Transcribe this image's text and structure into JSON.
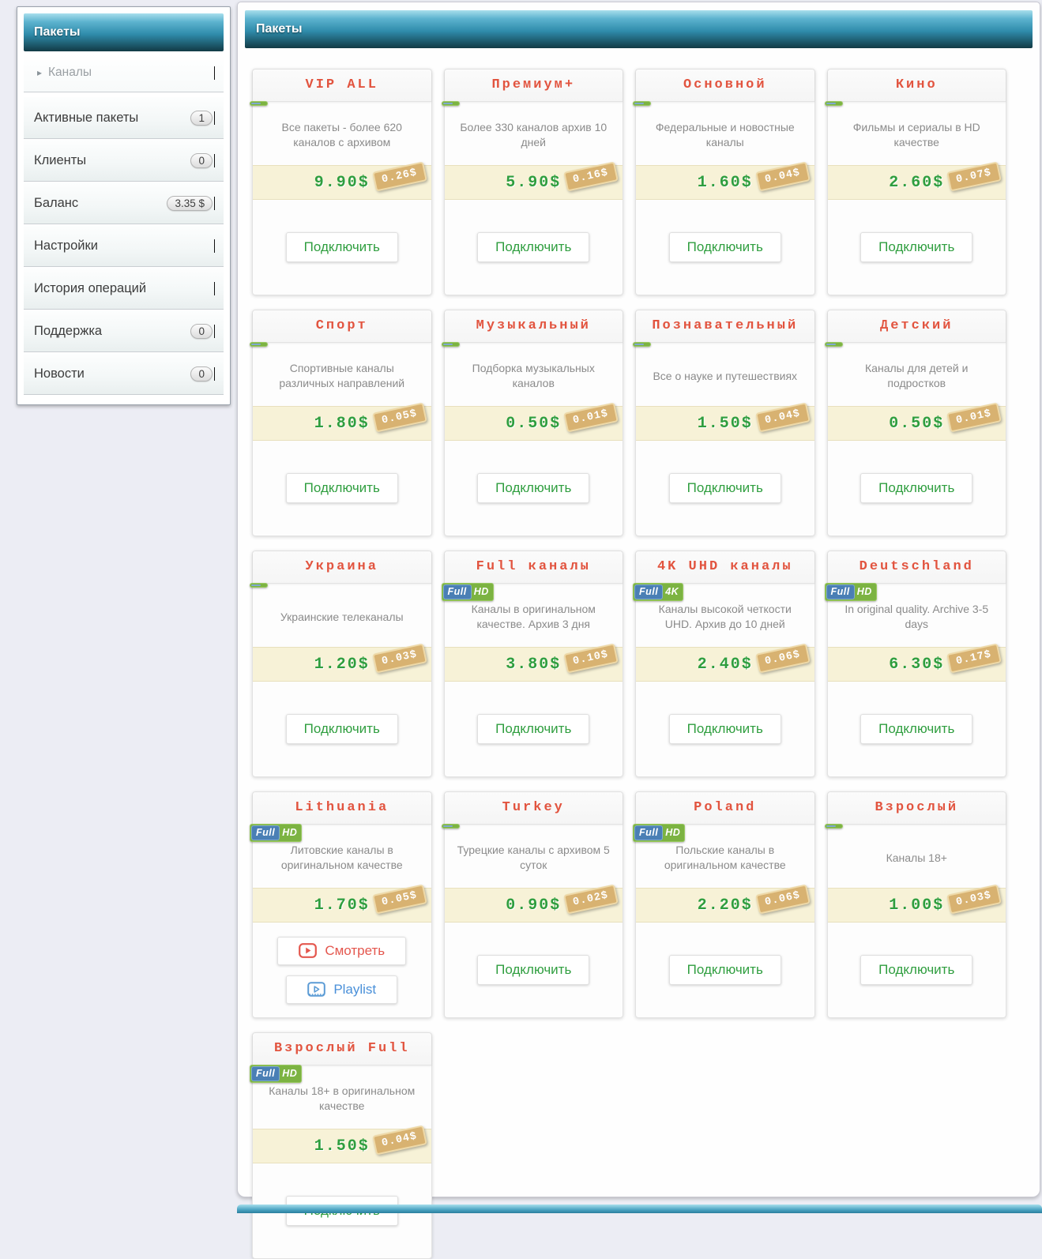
{
  "sidebar": {
    "header": "Пакеты",
    "items": [
      {
        "label": "Каналы",
        "sub": true,
        "badge": null,
        "caret_icon": "▸"
      },
      {
        "label": "Активные пакеты",
        "badge": "1"
      },
      {
        "label": "Клиенты",
        "badge": "0"
      },
      {
        "label": "Баланс",
        "badge": "3.35 $"
      },
      {
        "label": "Настройки",
        "badge": null
      },
      {
        "label": "История операций",
        "badge": null
      },
      {
        "label": "Поддержка",
        "badge": "0"
      },
      {
        "label": "Новости",
        "badge": "0",
        "text_cursor": true
      }
    ]
  },
  "main": {
    "header": "Пакеты"
  },
  "labels": {
    "connect": "Подключить",
    "watch": "Смотреть",
    "playlist": "Playlist",
    "badge_full": "Full"
  },
  "packages": [
    {
      "title": "VIP ALL",
      "badge": null,
      "description": "Все пакеты - более 620 каналов с архивом",
      "price": "9.90$",
      "per_day": "0.26$",
      "actions": [
        "connect"
      ]
    },
    {
      "title": "Премиум+",
      "badge": null,
      "description": "Более 330 каналов архив 10 дней",
      "price": "5.90$",
      "per_day": "0.16$",
      "actions": [
        "connect"
      ]
    },
    {
      "title": "Основной",
      "badge": null,
      "description": "Федеральные и новостные каналы",
      "price": "1.60$",
      "per_day": "0.04$",
      "actions": [
        "connect"
      ]
    },
    {
      "title": "Кино",
      "badge": null,
      "description": "Фильмы и сериалы в HD качестве",
      "price": "2.60$",
      "per_day": "0.07$",
      "actions": [
        "connect"
      ]
    },
    {
      "title": "Спорт",
      "badge": null,
      "description": "Спортивные каналы различных направлений",
      "price": "1.80$",
      "per_day": "0.05$",
      "actions": [
        "connect"
      ]
    },
    {
      "title": "Музыкальный",
      "badge": null,
      "description": "Подборка музыкальных каналов",
      "price": "0.50$",
      "per_day": "0.01$",
      "actions": [
        "connect"
      ]
    },
    {
      "title": "Познавательный",
      "badge": null,
      "description": "Все о науке и путешествиях",
      "price": "1.50$",
      "per_day": "0.04$",
      "actions": [
        "connect"
      ]
    },
    {
      "title": "Детский",
      "badge": null,
      "description": "Каналы для детей и подростков",
      "price": "0.50$",
      "per_day": "0.01$",
      "actions": [
        "connect"
      ]
    },
    {
      "title": "Украина",
      "badge": null,
      "description": "Украинские телеканалы",
      "price": "1.20$",
      "per_day": "0.03$",
      "actions": [
        "connect"
      ]
    },
    {
      "title": "Full каналы",
      "badge": "HD",
      "description": "Каналы в оригинальном качестве. Архив 3 дня",
      "price": "3.80$",
      "per_day": "0.10$",
      "actions": [
        "connect"
      ]
    },
    {
      "title": "4K UHD каналы",
      "badge": "4K",
      "description": "Каналы высокой четкости UHD. Архив до 10 дней",
      "price": "2.40$",
      "per_day": "0.06$",
      "actions": [
        "connect"
      ]
    },
    {
      "title": "Deutschland",
      "badge": "HD",
      "description": "In original quality. Archive 3-5 days",
      "price": "6.30$",
      "per_day": "0.17$",
      "actions": [
        "connect"
      ]
    },
    {
      "title": "Lithuania",
      "badge": "HD",
      "description": "Литовские каналы в оригинальном качестве",
      "price": "1.70$",
      "per_day": "0.05$",
      "actions": [
        "watch",
        "playlist"
      ]
    },
    {
      "title": "Turkey",
      "badge": null,
      "description": "Турецкие каналы с архивом 5 суток",
      "price": "0.90$",
      "per_day": "0.02$",
      "actions": [
        "connect"
      ]
    },
    {
      "title": "Poland",
      "badge": "HD",
      "description": "Польские каналы в оригинальном качестве",
      "price": "2.20$",
      "per_day": "0.06$",
      "actions": [
        "connect"
      ]
    },
    {
      "title": "Взрослый",
      "badge": null,
      "description": "Каналы 18+",
      "price": "1.00$",
      "per_day": "0.03$",
      "actions": [
        "connect"
      ]
    },
    {
      "title": "Взрослый Full",
      "badge": "HD",
      "description": "Каналы 18+ в оригинальном качестве",
      "price": "1.50$",
      "per_day": "0.04$",
      "actions": [
        "connect"
      ]
    }
  ],
  "colors": {
    "accent_red": "#e2543f",
    "price_green": "#2f9e3f",
    "price_bar_bg": "#f7f2d7",
    "tag_bg": "#d8b271",
    "badge_blue": "#4a7fb5",
    "badge_green": "#7cb342",
    "teal_light": "#a7dfec",
    "teal_dark": "#123a45"
  }
}
